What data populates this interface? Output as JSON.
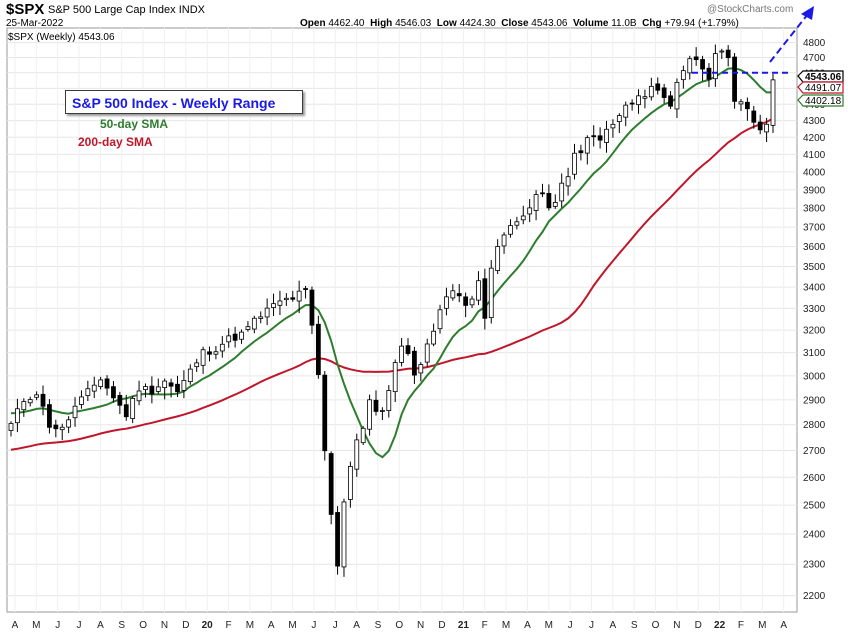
{
  "header": {
    "symbol": "$SPX",
    "name": "S&P 500 Large Cap Index",
    "exchange": "INDX",
    "date": "25-Mar-2022",
    "open_label": "Open",
    "open": "4462.40",
    "high_label": "High",
    "high": "4546.03",
    "low_label": "Low",
    "low": "4424.30",
    "close_label": "Close",
    "close": "4543.06",
    "volume_label": "Volume",
    "volume": "11.0B",
    "chg_label": "Chg",
    "chg": "+79.94 (+1.79%)",
    "watermark": "@StockCharts.com",
    "legend_tag": "$SPX (Weekly) 4543.06"
  },
  "annotations": {
    "box": "S&P 500 Index - Weekly Range",
    "sma50": "50-day SMA",
    "sma200": "200-day SMA"
  },
  "colors": {
    "sma50": "#2e7d2e",
    "sma200": "#c0162a",
    "annotation": "#1a1ae6",
    "up_candle": "#ffffff",
    "down_candle": "#000000"
  },
  "chart_data": {
    "type": "candlestick",
    "y_scale": "log",
    "ylim": [
      2150,
      4900
    ],
    "y_ticks": [
      2200,
      2300,
      2400,
      2500,
      2600,
      2700,
      2800,
      2900,
      3000,
      3100,
      3200,
      3300,
      3400,
      3500,
      3600,
      3700,
      3800,
      3900,
      4000,
      4100,
      4200,
      4300,
      4400,
      4500,
      4600,
      4700,
      4800
    ],
    "x_labels": [
      "A",
      "M",
      "J",
      "J",
      "A",
      "S",
      "O",
      "N",
      "D",
      "20",
      "F",
      "M",
      "A",
      "M",
      "J",
      "J",
      "A",
      "S",
      "O",
      "N",
      "D",
      "21",
      "F",
      "M",
      "A",
      "M",
      "J",
      "J",
      "A",
      "S",
      "O",
      "N",
      "D",
      "22",
      "F",
      "M",
      "A"
    ],
    "bold_x_labels": [
      "20",
      "21",
      "22"
    ],
    "price_badges": [
      {
        "value": "4543.06",
        "color": "#000000"
      },
      {
        "value": "4491.07",
        "color": "#c0162a"
      },
      {
        "value": "4402.18",
        "color": "#2e7d2e"
      }
    ],
    "resistance_level": 4600,
    "anchors": [
      [
        0,
        2800
      ],
      [
        2,
        2900
      ],
      [
        4,
        2930
      ],
      [
        6,
        2800
      ],
      [
        8,
        2780
      ],
      [
        10,
        2870
      ],
      [
        12,
        2930
      ],
      [
        14,
        2990
      ],
      [
        16,
        2910
      ],
      [
        18,
        2840
      ],
      [
        20,
        2950
      ],
      [
        22,
        2940
      ],
      [
        24,
        2980
      ],
      [
        26,
        2930
      ],
      [
        28,
        3020
      ],
      [
        30,
        3100
      ],
      [
        32,
        3120
      ],
      [
        34,
        3160
      ],
      [
        36,
        3180
      ],
      [
        38,
        3240
      ],
      [
        40,
        3290
      ],
      [
        42,
        3330
      ],
      [
        44,
        3350
      ],
      [
        46,
        3380
      ],
      [
        47,
        3210
      ],
      [
        48,
        3000
      ],
      [
        49,
        2700
      ],
      [
        50,
        2460
      ],
      [
        51,
        2300
      ],
      [
        52,
        2520
      ],
      [
        53,
        2640
      ],
      [
        54,
        2750
      ],
      [
        55,
        2790
      ],
      [
        56,
        2900
      ],
      [
        57,
        2840
      ],
      [
        58,
        2860
      ],
      [
        59,
        2950
      ],
      [
        60,
        3050
      ],
      [
        61,
        3120
      ],
      [
        62,
        3080
      ],
      [
        63,
        3020
      ],
      [
        64,
        3040
      ],
      [
        65,
        3150
      ],
      [
        66,
        3200
      ],
      [
        67,
        3280
      ],
      [
        68,
        3360
      ],
      [
        69,
        3400
      ],
      [
        70,
        3360
      ],
      [
        71,
        3300
      ],
      [
        72,
        3340
      ],
      [
        73,
        3450
      ],
      [
        74,
        3270
      ],
      [
        75,
        3500
      ],
      [
        76,
        3580
      ],
      [
        77,
        3660
      ],
      [
        78,
        3700
      ],
      [
        79,
        3720
      ],
      [
        80,
        3760
      ],
      [
        81,
        3820
      ],
      [
        82,
        3870
      ],
      [
        83,
        3880
      ],
      [
        84,
        3780
      ],
      [
        85,
        3850
      ],
      [
        86,
        3920
      ],
      [
        87,
        3960
      ],
      [
        88,
        4100
      ],
      [
        89,
        4130
      ],
      [
        90,
        4180
      ],
      [
        91,
        4200
      ],
      [
        92,
        4180
      ],
      [
        93,
        4240
      ],
      [
        94,
        4280
      ],
      [
        95,
        4320
      ],
      [
        96,
        4390
      ],
      [
        97,
        4400
      ],
      [
        98,
        4430
      ],
      [
        99,
        4470
      ],
      [
        100,
        4520
      ],
      [
        101,
        4480
      ],
      [
        102,
        4440
      ],
      [
        103,
        4400
      ],
      [
        104,
        4550
      ],
      [
        105,
        4620
      ],
      [
        106,
        4680
      ],
      [
        107,
        4700
      ],
      [
        108,
        4650
      ],
      [
        109,
        4580
      ],
      [
        110,
        4700
      ],
      [
        111,
        4720
      ],
      [
        112,
        4680
      ],
      [
        113,
        4400
      ],
      [
        114,
        4420
      ],
      [
        115,
        4380
      ],
      [
        116,
        4300
      ],
      [
        117,
        4220
      ],
      [
        118,
        4300
      ],
      [
        119,
        4540
      ]
    ]
  }
}
